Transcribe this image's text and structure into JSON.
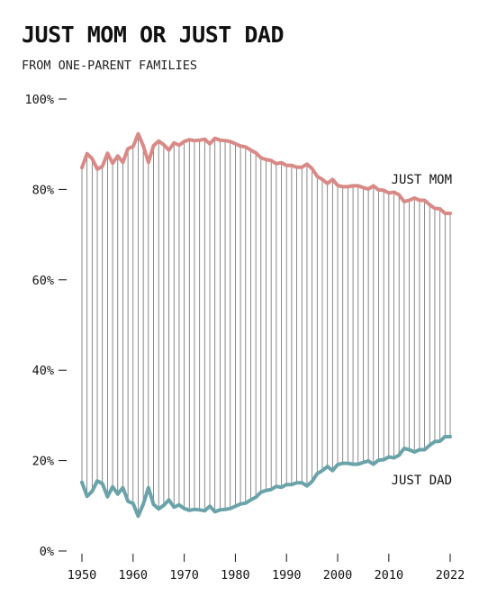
{
  "title": "JUST MOM OR JUST DAD",
  "subtitle": "FROM ONE-PARENT FAMILIES",
  "colors": {
    "mom": "#d98a86",
    "dad": "#6aa3a9",
    "connector": "#555555",
    "text": "#111111"
  },
  "chart_data": {
    "type": "line",
    "title": "JUST MOM OR JUST DAD",
    "subtitle": "FROM ONE-PARENT FAMILIES",
    "xlabel": "",
    "ylabel": "",
    "ylim": [
      0,
      100
    ],
    "xlim": [
      1950,
      2022
    ],
    "y_ticks": [
      0,
      20,
      40,
      60,
      80,
      100
    ],
    "y_tick_labels": [
      "0%",
      "20%",
      "40%",
      "60%",
      "80%",
      "100%"
    ],
    "x_ticks": [
      1950,
      1960,
      1970,
      1980,
      1990,
      2000,
      2010,
      2022
    ],
    "x_tick_labels": [
      "1950",
      "1960",
      "1970",
      "1980",
      "1990",
      "2000",
      "2010",
      "2022"
    ],
    "grid": false,
    "legend": "direct labels at right end of lines",
    "x": [
      1950,
      1951,
      1952,
      1953,
      1954,
      1955,
      1956,
      1957,
      1958,
      1959,
      1960,
      1961,
      1962,
      1963,
      1964,
      1965,
      1966,
      1967,
      1968,
      1969,
      1970,
      1971,
      1972,
      1973,
      1974,
      1975,
      1976,
      1977,
      1978,
      1979,
      1980,
      1981,
      1982,
      1983,
      1984,
      1985,
      1986,
      1987,
      1988,
      1989,
      1990,
      1991,
      1992,
      1993,
      1994,
      1995,
      1996,
      1997,
      1998,
      1999,
      2000,
      2001,
      2002,
      2003,
      2004,
      2005,
      2006,
      2007,
      2008,
      2009,
      2010,
      2011,
      2012,
      2013,
      2014,
      2015,
      2016,
      2017,
      2018,
      2019,
      2020,
      2021,
      2022
    ],
    "series": [
      {
        "name": "JUST MOM",
        "color": "#d98a86",
        "values": [
          84.8,
          87.9,
          86.8,
          84.5,
          85.1,
          88.0,
          85.8,
          87.4,
          86.0,
          89.0,
          89.5,
          92.3,
          89.6,
          86.0,
          89.7,
          90.7,
          89.9,
          88.7,
          90.3,
          89.8,
          90.6,
          91.0,
          90.8,
          90.9,
          91.1,
          90.1,
          91.3,
          90.9,
          90.8,
          90.6,
          90.1,
          89.6,
          89.4,
          88.7,
          88.1,
          87.0,
          86.6,
          86.4,
          85.7,
          85.9,
          85.3,
          85.3,
          84.9,
          84.9,
          85.6,
          84.6,
          82.9,
          82.2,
          81.3,
          82.2,
          80.9,
          80.6,
          80.6,
          80.8,
          80.8,
          80.4,
          80.1,
          80.8,
          79.9,
          79.8,
          79.2,
          79.4,
          78.8,
          77.3,
          77.6,
          78.1,
          77.6,
          77.6,
          76.6,
          75.8,
          75.7,
          74.7,
          74.7
        ]
      },
      {
        "name": "JUST DAD",
        "color": "#6aa3a9",
        "values": [
          15.2,
          12.1,
          13.2,
          15.5,
          14.9,
          12.0,
          14.2,
          12.6,
          14.0,
          11.0,
          10.5,
          7.7,
          10.4,
          14.0,
          10.3,
          9.3,
          10.1,
          11.3,
          9.7,
          10.2,
          9.4,
          9.0,
          9.2,
          9.1,
          8.9,
          9.9,
          8.7,
          9.1,
          9.2,
          9.4,
          9.9,
          10.4,
          10.6,
          11.3,
          11.9,
          13.0,
          13.4,
          13.6,
          14.3,
          14.1,
          14.7,
          14.7,
          15.1,
          15.1,
          14.4,
          15.4,
          17.1,
          17.8,
          18.7,
          17.8,
          19.1,
          19.4,
          19.4,
          19.2,
          19.2,
          19.6,
          19.9,
          19.2,
          20.1,
          20.2,
          20.8,
          20.6,
          21.2,
          22.7,
          22.4,
          21.9,
          22.4,
          22.4,
          23.4,
          24.2,
          24.3,
          25.3,
          25.3
        ]
      }
    ]
  }
}
